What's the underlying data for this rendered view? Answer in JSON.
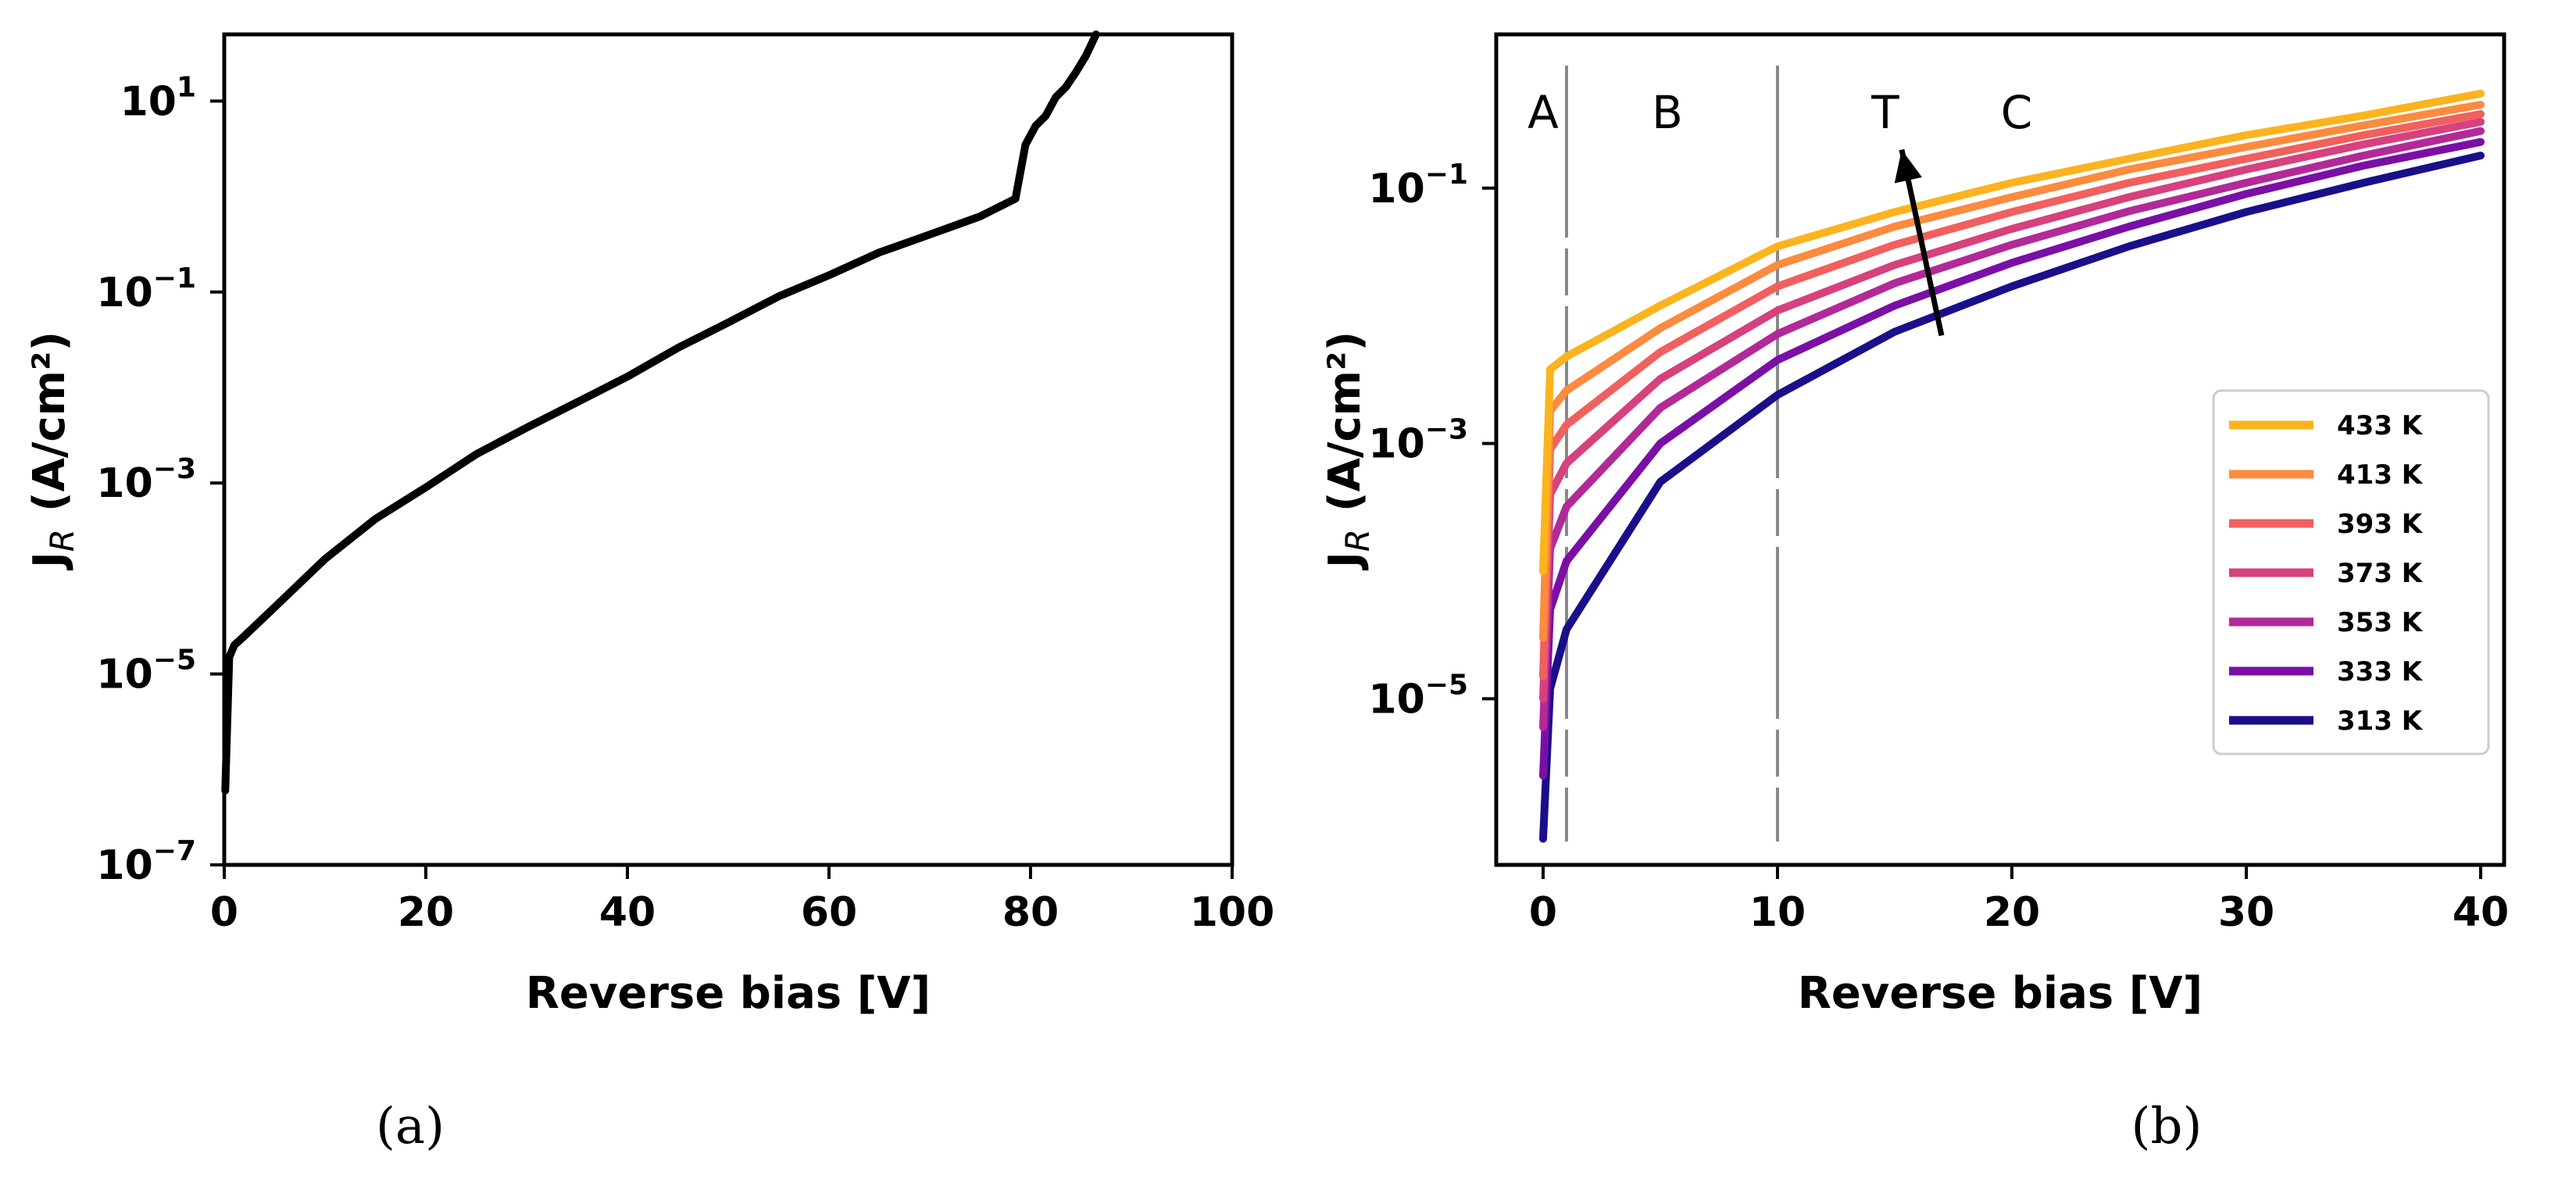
{
  "panel_labels": {
    "a": "(a)",
    "b": "(b)"
  },
  "chart_data": [
    {
      "type": "line",
      "panel": "(a)",
      "xlabel": "Reverse bias [V]",
      "ylabel_main": "J",
      "ylabel_sub": "R",
      "ylabel_unit": "(A/cm²)",
      "xlim": [
        0,
        100
      ],
      "ylim": [
        1e-07,
        50
      ],
      "yscale": "log",
      "x_ticks": [
        0,
        20,
        40,
        60,
        80,
        100
      ],
      "y_ticks": [
        1e-07,
        1e-05,
        0.001,
        0.1,
        10
      ],
      "y_tick_exponents": [
        "−7",
        "−5",
        "−3",
        "−1",
        "1"
      ],
      "grid": false,
      "series": [
        {
          "color": "#000000",
          "x": [
            0.1,
            0.5,
            1,
            2,
            5,
            10,
            15,
            20,
            25,
            30,
            35,
            40,
            45,
            50,
            55,
            60,
            65,
            70,
            75,
            78.5,
            79.5,
            80.5,
            81.5,
            82.5,
            83.5,
            84.5,
            85.5,
            86.5
          ],
          "y": [
            6e-07,
            1.5e-05,
            2e-05,
            2.5e-05,
            5e-05,
            0.00016,
            0.00042,
            0.0009,
            0.002,
            0.0038,
            0.007,
            0.013,
            0.026,
            0.048,
            0.09,
            0.15,
            0.26,
            0.4,
            0.62,
            0.95,
            3.5,
            5.5,
            7,
            11,
            14,
            20,
            30,
            50
          ]
        }
      ]
    },
    {
      "type": "line",
      "panel": "(b)",
      "xlabel": "Reverse bias [V]",
      "ylabel_main": "J",
      "ylabel_sub": "R",
      "ylabel_unit": "(A/cm²)",
      "xlim": [
        -2,
        41
      ],
      "ylim": [
        5e-07,
        1.6
      ],
      "yscale": "log",
      "x_ticks": [
        0,
        10,
        20,
        30,
        40
      ],
      "y_ticks": [
        1e-05,
        0.001,
        0.1
      ],
      "y_tick_exponents": [
        "−5",
        "−3",
        "−1"
      ],
      "grid": false,
      "region_lines_x": [
        1,
        10
      ],
      "region_labels": [
        {
          "text": "A",
          "x": 0
        },
        {
          "text": "B",
          "x": 5.3
        },
        {
          "text": "T",
          "x": 14.6
        },
        {
          "text": "C",
          "x": 20.2
        }
      ],
      "arrow": {
        "from": [
          17,
          0.007
        ],
        "to": [
          15.3,
          0.2
        ]
      },
      "legend_position": "right",
      "series": [
        {
          "name": "433 K",
          "color": "#fbb41f",
          "x": [
            0,
            0.3,
            1,
            5,
            10,
            15,
            20,
            25,
            30,
            35,
            40
          ],
          "y": [
            0.0001,
            0.0038,
            0.0048,
            0.012,
            0.035,
            0.065,
            0.11,
            0.17,
            0.26,
            0.37,
            0.55
          ]
        },
        {
          "name": "413 K",
          "color": "#fb8b3f",
          "x": [
            0,
            0.3,
            1,
            5,
            10,
            15,
            20,
            25,
            30,
            35,
            40
          ],
          "y": [
            3e-05,
            0.0018,
            0.0026,
            0.008,
            0.025,
            0.05,
            0.085,
            0.14,
            0.21,
            0.31,
            0.45
          ]
        },
        {
          "name": "393 K",
          "color": "#f0605f",
          "x": [
            0,
            0.3,
            1,
            5,
            10,
            15,
            20,
            25,
            30,
            35,
            40
          ],
          "y": [
            1.5e-05,
            0.0009,
            0.0014,
            0.0052,
            0.017,
            0.036,
            0.065,
            0.11,
            0.17,
            0.26,
            0.38
          ]
        },
        {
          "name": "373 K",
          "color": "#d6417e",
          "x": [
            0,
            0.3,
            1,
            5,
            10,
            15,
            20,
            25,
            30,
            35,
            40
          ],
          "y": [
            1e-05,
            0.0004,
            0.0007,
            0.0032,
            0.011,
            0.025,
            0.048,
            0.085,
            0.14,
            0.22,
            0.33
          ]
        },
        {
          "name": "353 K",
          "color": "#b12a98",
          "x": [
            0,
            0.3,
            1,
            5,
            10,
            15,
            20,
            25,
            30,
            35,
            40
          ],
          "y": [
            6e-06,
            0.00015,
            0.00032,
            0.0019,
            0.0072,
            0.018,
            0.036,
            0.066,
            0.11,
            0.18,
            0.28
          ]
        },
        {
          "name": "333 K",
          "color": "#7a0fa6",
          "x": [
            0,
            0.3,
            1,
            5,
            10,
            15,
            20,
            25,
            30,
            35,
            40
          ],
          "y": [
            2.5e-06,
            5e-05,
            0.00012,
            0.001,
            0.0045,
            0.012,
            0.026,
            0.05,
            0.09,
            0.15,
            0.23
          ]
        },
        {
          "name": "313 K",
          "color": "#1a0f8a",
          "x": [
            0,
            0.3,
            1,
            5,
            10,
            15,
            20,
            25,
            30,
            35,
            40
          ],
          "y": [
            8e-07,
            1.2e-05,
            3.5e-05,
            0.0005,
            0.0024,
            0.0075,
            0.017,
            0.035,
            0.065,
            0.11,
            0.18
          ]
        }
      ]
    }
  ]
}
